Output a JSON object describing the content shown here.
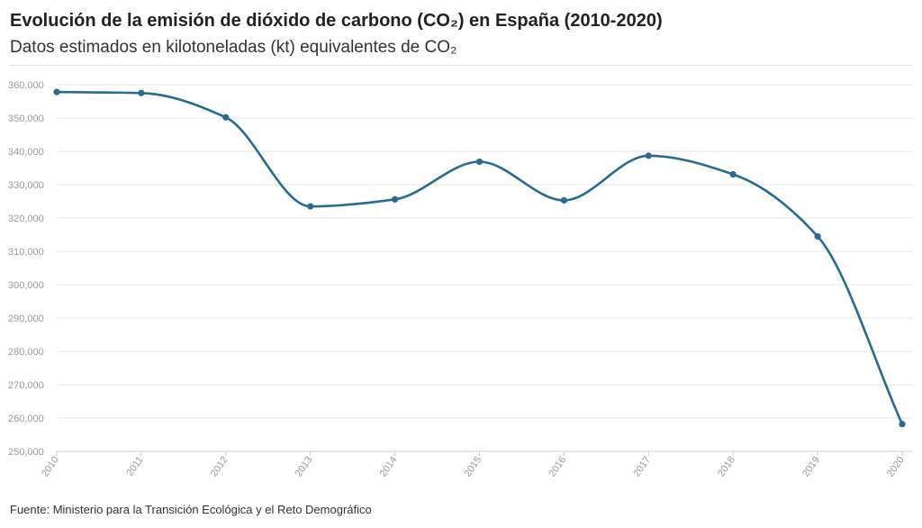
{
  "chart_data": {
    "type": "line",
    "title": "Evolución de la emisión de dióxido de carbono (CO₂) en España (2010-2020)",
    "subtitle": "Datos estimados en kilotoneladas (kt) equivalentes de CO₂",
    "source": "Fuente: Ministerio para la Transición Ecológica y el Reto Demográfico",
    "x": [
      "2010",
      "2011",
      "2012",
      "2013",
      "2014",
      "2015",
      "2016",
      "2017",
      "2018",
      "2019",
      "2020"
    ],
    "series": [
      {
        "values": [
          357800,
          357500,
          350200,
          323500,
          325600,
          336900,
          325300,
          338700,
          333100,
          314500,
          258200
        ]
      }
    ],
    "yticks": [
      "250,000",
      "260,000",
      "270,000",
      "280,000",
      "290,000",
      "300,000",
      "310,000",
      "320,000",
      "330,000",
      "340,000",
      "350,000",
      "360,000"
    ],
    "ylim": [
      250000,
      360000
    ],
    "grid": true,
    "line_color": "#2a6a8f"
  }
}
